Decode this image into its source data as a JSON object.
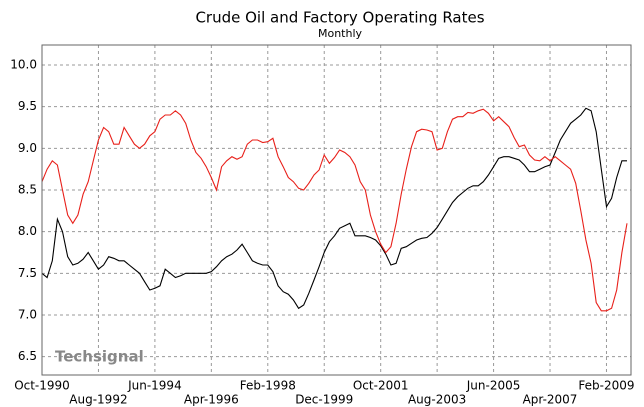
{
  "chart_data": {
    "type": "line",
    "title": "Crude Oil and Factory Operating Rates",
    "subtitle": "Monthly",
    "annotation": "Techsignal",
    "categories": [
      "Oct-1990",
      null,
      null,
      null,
      null,
      null,
      null,
      null,
      null,
      null,
      null,
      "Aug-1992",
      null,
      null,
      null,
      null,
      null,
      null,
      null,
      null,
      null,
      null,
      "Jun-1994",
      null,
      null,
      null,
      null,
      null,
      null,
      null,
      null,
      null,
      null,
      "Apr-1996",
      null,
      null,
      null,
      null,
      null,
      null,
      null,
      null,
      null,
      null,
      "Feb-1998",
      null,
      null,
      null,
      null,
      null,
      null,
      null,
      null,
      null,
      null,
      "Dec-1999",
      null,
      null,
      null,
      null,
      null,
      null,
      null,
      null,
      null,
      null,
      "Oct-2001",
      null,
      null,
      null,
      null,
      null,
      null,
      null,
      null,
      null,
      null,
      "Aug-2003",
      null,
      null,
      null,
      null,
      null,
      null,
      null,
      null,
      null,
      null,
      "Jun-2005",
      null,
      null,
      null,
      null,
      null,
      null,
      null,
      null,
      null,
      null,
      "Apr-2007",
      null,
      null,
      null,
      null,
      null,
      null,
      null,
      null,
      null,
      null,
      "Feb-2009",
      null,
      null,
      null,
      null
    ],
    "series": [
      {
        "color": "#000000",
        "values": [
          7.5,
          7.45,
          7.65,
          8.15,
          8.0,
          7.7,
          7.6,
          7.62,
          7.67,
          7.75,
          7.65,
          7.55,
          7.6,
          7.7,
          7.68,
          7.65,
          7.65,
          7.6,
          7.55,
          7.5,
          7.4,
          7.3,
          7.32,
          7.35,
          7.55,
          7.5,
          7.45,
          7.47,
          7.5,
          7.5,
          7.5,
          7.5,
          7.5,
          7.52,
          7.58,
          7.65,
          7.7,
          7.73,
          7.78,
          7.85,
          7.75,
          7.65,
          7.62,
          7.6,
          7.6,
          7.52,
          7.35,
          7.28,
          7.25,
          7.18,
          7.08,
          7.12,
          7.26,
          7.42,
          7.58,
          7.75,
          7.88,
          7.95,
          8.04,
          8.07,
          8.1,
          7.95,
          7.95,
          7.95,
          7.93,
          7.9,
          7.83,
          7.73,
          7.6,
          7.62,
          7.8,
          7.82,
          7.86,
          7.9,
          7.92,
          7.93,
          7.98,
          8.05,
          8.15,
          8.25,
          8.35,
          8.42,
          8.47,
          8.52,
          8.55,
          8.55,
          8.6,
          8.68,
          8.78,
          8.88,
          8.9,
          8.9,
          8.88,
          8.86,
          8.8,
          8.72,
          8.72,
          8.75,
          8.78,
          8.8,
          8.95,
          9.1,
          9.2,
          9.3,
          9.35,
          9.4,
          9.48,
          9.45,
          9.2,
          8.75,
          8.3,
          8.4,
          8.65,
          8.85,
          8.85
        ]
      },
      {
        "color": "#e8201a",
        "values": [
          8.6,
          8.75,
          8.85,
          8.8,
          8.5,
          8.2,
          8.1,
          8.2,
          8.45,
          8.6,
          8.85,
          9.1,
          9.25,
          9.2,
          9.05,
          9.05,
          9.25,
          9.15,
          9.05,
          9.0,
          9.05,
          9.15,
          9.2,
          9.35,
          9.4,
          9.4,
          9.45,
          9.4,
          9.3,
          9.1,
          8.95,
          8.88,
          8.78,
          8.65,
          8.5,
          8.78,
          8.85,
          8.9,
          8.87,
          8.9,
          9.05,
          9.1,
          9.1,
          9.07,
          9.08,
          9.12,
          8.9,
          8.78,
          8.65,
          8.6,
          8.52,
          8.5,
          8.58,
          8.68,
          8.74,
          8.92,
          8.82,
          8.89,
          8.98,
          8.95,
          8.9,
          8.8,
          8.6,
          8.5,
          8.2,
          8.0,
          7.85,
          7.75,
          7.82,
          8.1,
          8.45,
          8.75,
          9.02,
          9.2,
          9.23,
          9.22,
          9.2,
          8.98,
          9.0,
          9.2,
          9.35,
          9.38,
          9.38,
          9.43,
          9.42,
          9.45,
          9.47,
          9.42,
          9.33,
          9.38,
          9.32,
          9.26,
          9.13,
          9.02,
          9.04,
          8.92,
          8.86,
          8.85,
          8.9,
          8.85,
          8.9,
          8.85,
          8.8,
          8.75,
          8.58,
          8.25,
          7.9,
          7.62,
          7.15,
          7.05,
          7.05,
          7.08,
          7.3,
          7.75,
          8.1
        ]
      }
    ],
    "ylim": [
      6.28,
      10.24
    ],
    "yticks": [
      6.5,
      {
        "value": 7,
        "label": "7.0"
      },
      7.5,
      {
        "value": 8,
        "label": "8.0"
      },
      8.5,
      {
        "value": 9,
        "label": "9.0"
      },
      9.5,
      {
        "value": 10,
        "label": "10.0"
      }
    ],
    "grid": true
  }
}
